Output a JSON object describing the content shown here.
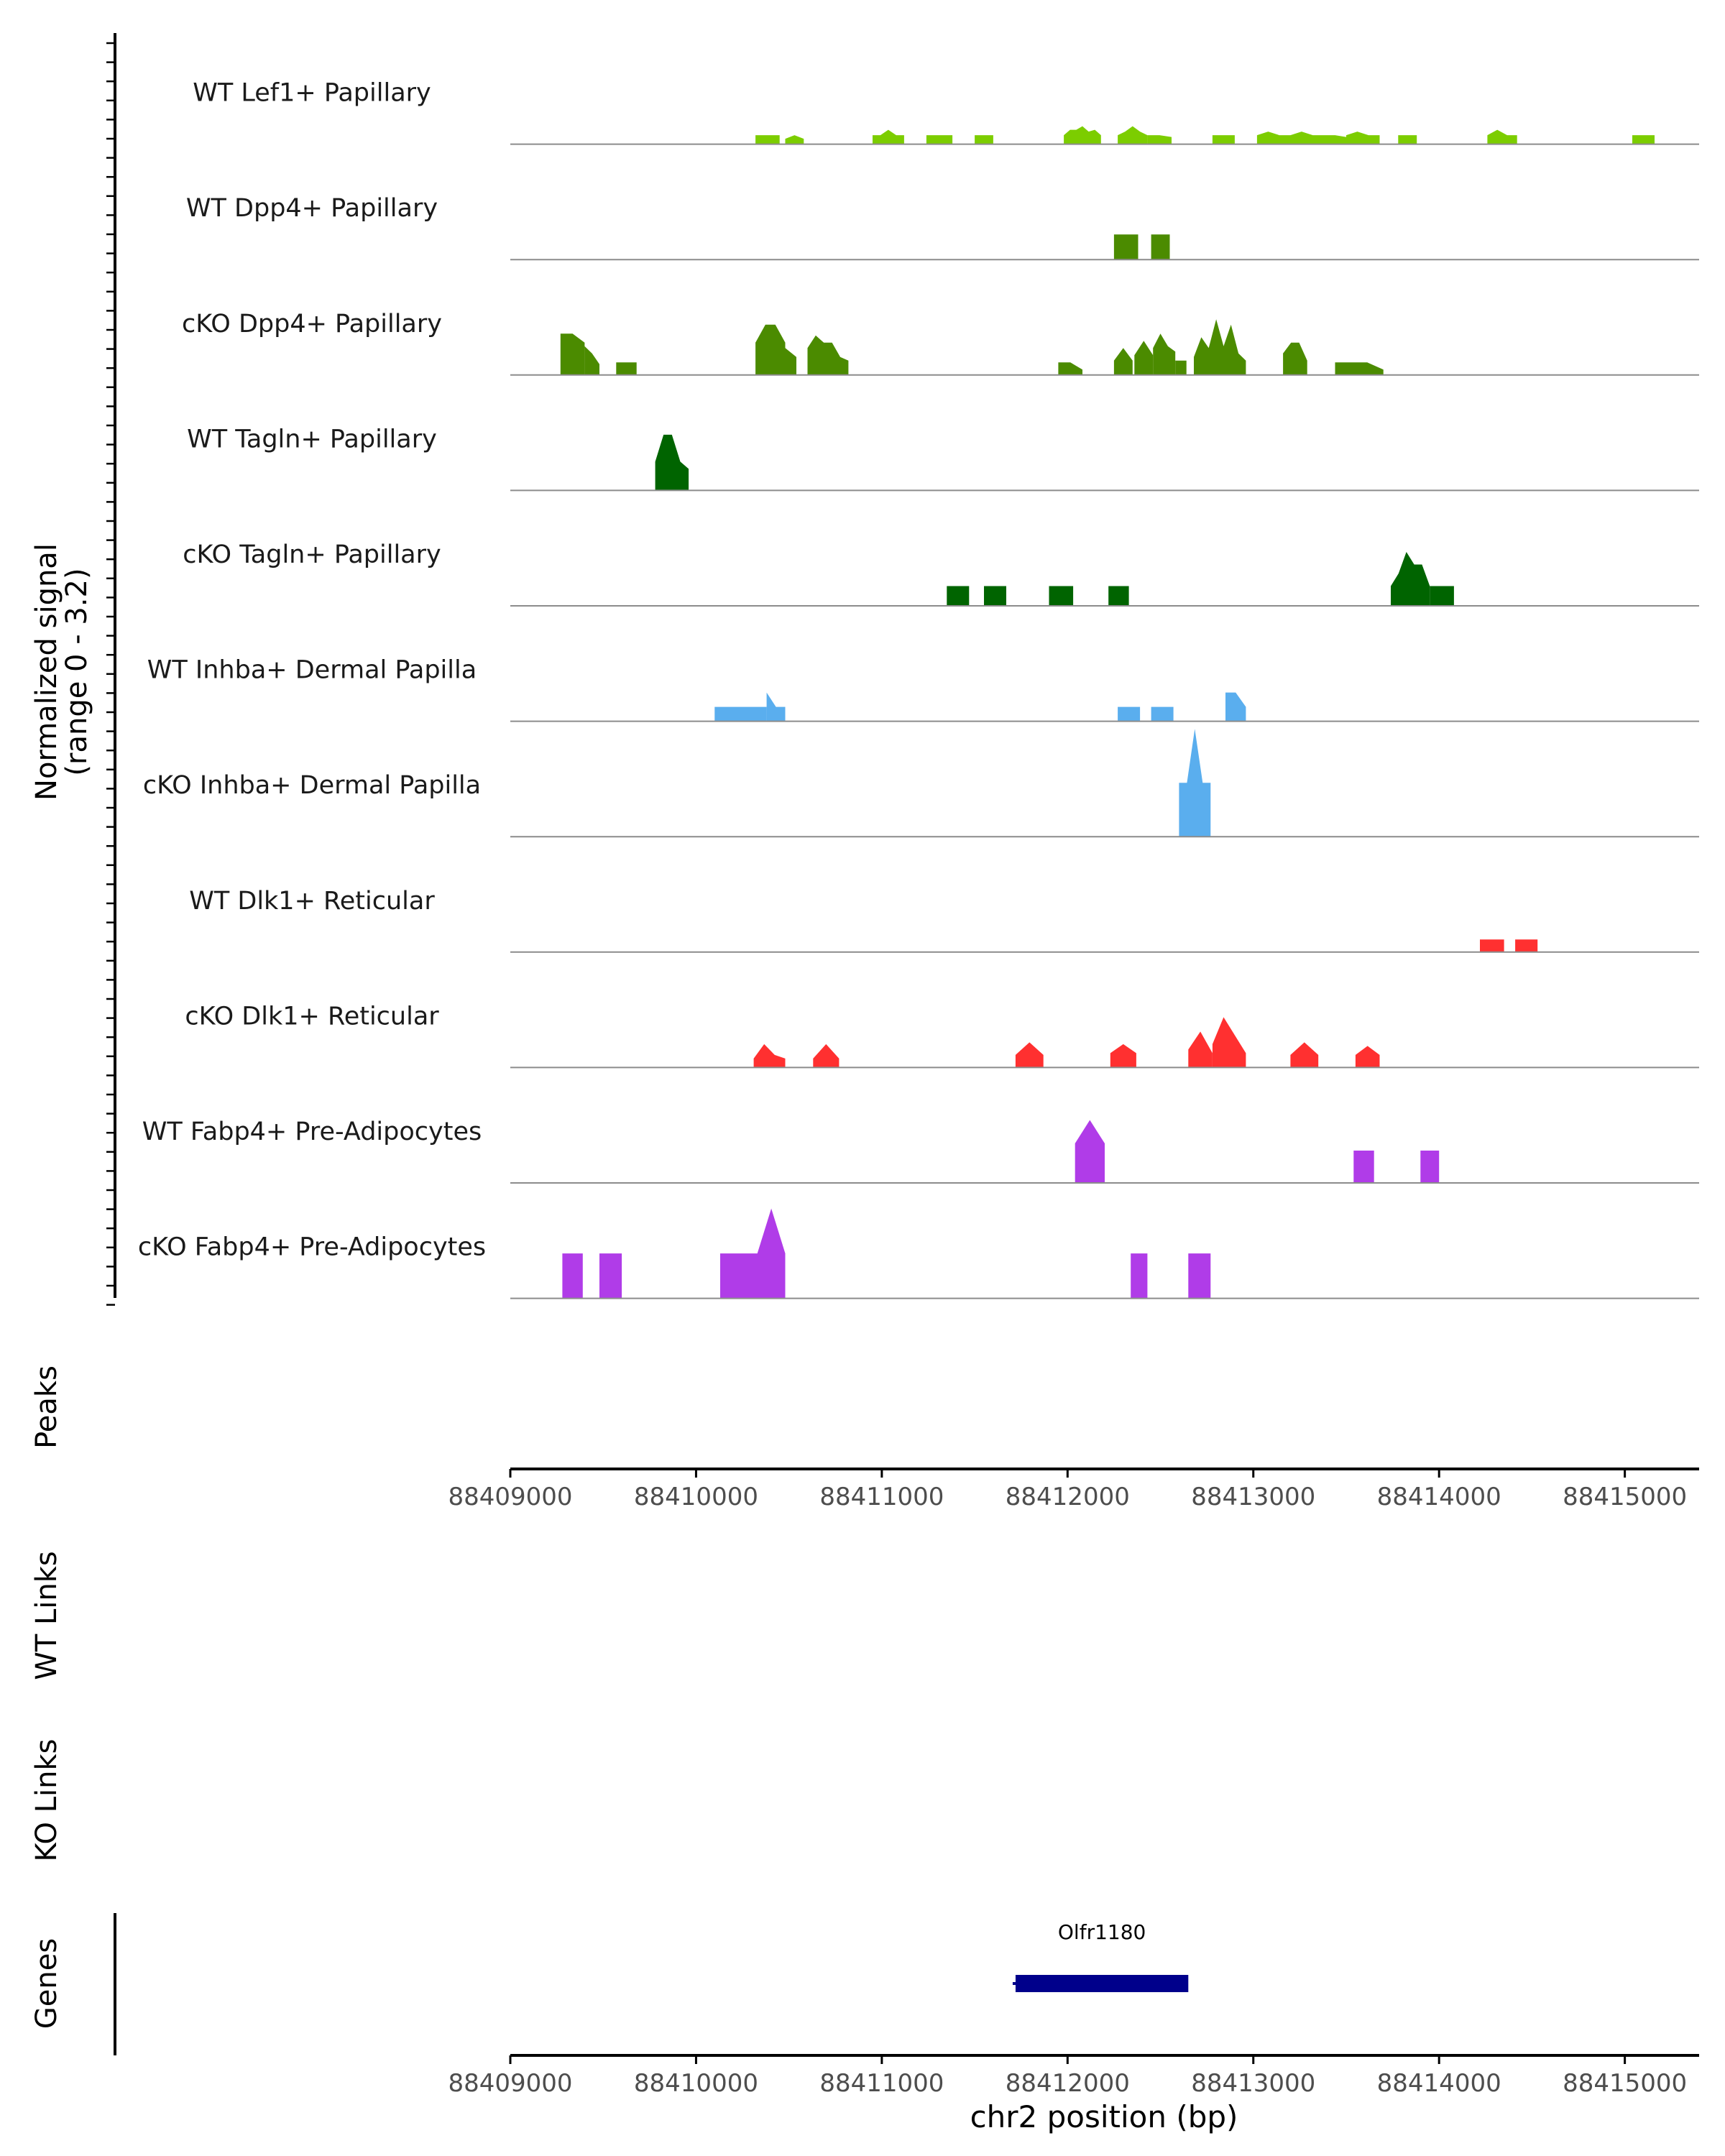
{
  "chart_data": {
    "type": "area",
    "title": "",
    "xlabel": "chr2 position (bp)",
    "ylabel": "Normalized signal",
    "ylabel_sub": "(range 0 - 3.2)",
    "y_range": [
      0,
      3.2
    ],
    "xlim": [
      88409000,
      88415400
    ],
    "x_ticks": [
      88409000,
      88410000,
      88411000,
      88412000,
      88413000,
      88414000,
      88415000
    ],
    "x_tick_labels": [
      "88409000",
      "88410000",
      "88411000",
      "88412000",
      "88413000",
      "88414000",
      "88415000"
    ],
    "peaks_label": "Peaks",
    "wt_links_label": "WT Links",
    "ko_links_label": "KO Links",
    "genes_label": "Genes",
    "genes": [
      {
        "name": "Olfr1180",
        "start": 88411720,
        "end": 88412650,
        "color": "#00008b"
      }
    ],
    "tracks": [
      {
        "name": "WT Lef1+ Papillary",
        "color": "#7ccd00",
        "regions": [
          {
            "start": 88410320,
            "end": 88410450,
            "values": [
              0.5,
              0.5
            ]
          },
          {
            "start": 88410480,
            "end": 88410580,
            "values": [
              0.3,
              0.5,
              0.3
            ]
          },
          {
            "start": 88410950,
            "end": 88411120,
            "values": [
              0.5,
              0.5,
              0.8,
              0.5,
              0.5
            ]
          },
          {
            "start": 88411240,
            "end": 88411380,
            "values": [
              0.5,
              0.5
            ]
          },
          {
            "start": 88411500,
            "end": 88411600,
            "values": [
              0.5,
              0.5
            ]
          },
          {
            "start": 88411980,
            "end": 88412180,
            "values": [
              0.5,
              0.8,
              0.8,
              1.0,
              0.7,
              0.8,
              0.5
            ]
          },
          {
            "start": 88412270,
            "end": 88412430,
            "values": [
              0.5,
              0.7,
              1.0,
              0.7,
              0.5
            ]
          },
          {
            "start": 88412430,
            "end": 88412560,
            "values": [
              0.5,
              0.5,
              0.4
            ]
          },
          {
            "start": 88412780,
            "end": 88412900,
            "values": [
              0.5,
              0.5
            ]
          },
          {
            "start": 88413020,
            "end": 88413500,
            "values": [
              0.5,
              0.7,
              0.5,
              0.5,
              0.7,
              0.5,
              0.5,
              0.5,
              0.4
            ]
          },
          {
            "start": 88413500,
            "end": 88413680,
            "values": [
              0.5,
              0.7,
              0.5,
              0.5
            ]
          },
          {
            "start": 88413780,
            "end": 88413880,
            "values": [
              0.5,
              0.5
            ]
          },
          {
            "start": 88414260,
            "end": 88414420,
            "values": [
              0.5,
              0.8,
              0.5,
              0.5
            ]
          },
          {
            "start": 88415040,
            "end": 88415160,
            "values": [
              0.5,
              0.5
            ]
          }
        ]
      },
      {
        "name": "WT Dpp4+ Papillary",
        "color": "#4b8b00",
        "regions": [
          {
            "start": 88412250,
            "end": 88412380,
            "values": [
              1.4,
              1.4
            ]
          },
          {
            "start": 88412450,
            "end": 88412550,
            "values": [
              1.4,
              1.4
            ]
          }
        ]
      },
      {
        "name": "cKO Dpp4+ Papillary",
        "color": "#4b8b00",
        "regions": [
          {
            "start": 88409270,
            "end": 88409400,
            "values": [
              2.3,
              2.3,
              1.8
            ]
          },
          {
            "start": 88409400,
            "end": 88409480,
            "values": [
              1.6,
              1.2,
              0.6
            ]
          },
          {
            "start": 88409570,
            "end": 88409680,
            "values": [
              0.7,
              0.7
            ]
          },
          {
            "start": 88410320,
            "end": 88410480,
            "values": [
              1.8,
              2.8,
              2.8,
              1.8
            ]
          },
          {
            "start": 88410480,
            "end": 88410540,
            "values": [
              1.5,
              1.0
            ]
          },
          {
            "start": 88410600,
            "end": 88410820,
            "values": [
              1.5,
              2.2,
              1.8,
              1.8,
              1.0,
              0.8
            ]
          },
          {
            "start": 88411950,
            "end": 88412080,
            "values": [
              0.7,
              0.7,
              0.3
            ]
          },
          {
            "start": 88412250,
            "end": 88412350,
            "values": [
              0.8,
              1.5,
              0.8
            ]
          },
          {
            "start": 88412360,
            "end": 88412460,
            "values": [
              1.1,
              1.9,
              1.1
            ]
          },
          {
            "start": 88412460,
            "end": 88412580,
            "values": [
              1.5,
              2.3,
              1.6,
              1.3
            ]
          },
          {
            "start": 88412580,
            "end": 88412640,
            "values": [
              0.8,
              0.8
            ]
          },
          {
            "start": 88412680,
            "end": 88412960,
            "values": [
              1.0,
              2.1,
              1.5,
              3.1,
              1.6,
              2.8,
              1.2,
              0.8
            ]
          },
          {
            "start": 88413160,
            "end": 88413290,
            "values": [
              1.2,
              1.8,
              1.8,
              0.8
            ]
          },
          {
            "start": 88413440,
            "end": 88413700,
            "values": [
              0.7,
              0.7,
              0.7,
              0.3
            ]
          }
        ]
      },
      {
        "name": "WT Tagln+ Papillary",
        "color": "#006400",
        "regions": [
          {
            "start": 88409780,
            "end": 88409960,
            "values": [
              1.6,
              3.1,
              3.1,
              1.6,
              1.2
            ]
          }
        ]
      },
      {
        "name": "cKO Tagln+ Papillary",
        "color": "#006400",
        "regions": [
          {
            "start": 88411350,
            "end": 88411470,
            "values": [
              1.1,
              1.1
            ]
          },
          {
            "start": 88411550,
            "end": 88411670,
            "values": [
              1.1,
              1.1
            ]
          },
          {
            "start": 88411900,
            "end": 88412030,
            "values": [
              1.1,
              1.1
            ]
          },
          {
            "start": 88412220,
            "end": 88412330,
            "values": [
              1.1,
              1.1
            ]
          },
          {
            "start": 88413740,
            "end": 88413950,
            "values": [
              1.1,
              1.8,
              3.0,
              2.3,
              2.3,
              1.1
            ]
          },
          {
            "start": 88413950,
            "end": 88414080,
            "values": [
              1.1,
              1.1
            ]
          }
        ]
      },
      {
        "name": "WT Inhba+ Dermal Papilla",
        "color": "#5aaeee",
        "regions": [
          {
            "start": 88410100,
            "end": 88410380,
            "values": [
              0.8,
              0.8,
              0.8,
              0.8
            ]
          },
          {
            "start": 88410380,
            "end": 88410480,
            "values": [
              1.6,
              0.8,
              0.8
            ]
          },
          {
            "start": 88412270,
            "end": 88412390,
            "values": [
              0.8,
              0.8
            ]
          },
          {
            "start": 88412450,
            "end": 88412570,
            "values": [
              0.8,
              0.8
            ]
          },
          {
            "start": 88412850,
            "end": 88412960,
            "values": [
              1.6,
              1.6,
              0.8
            ]
          }
        ]
      },
      {
        "name": "cKO Inhba+ Dermal Papilla",
        "color": "#5aaeee",
        "regions": [
          {
            "start": 88412600,
            "end": 88412770,
            "values": [
              3.0,
              3.0,
              6.0,
              3.0,
              3.0
            ]
          }
        ]
      },
      {
        "name": "WT Dlk1+ Reticular",
        "color": "#ff3030",
        "regions": [
          {
            "start": 88414220,
            "end": 88414350,
            "values": [
              0.7,
              0.7
            ]
          },
          {
            "start": 88414410,
            "end": 88414530,
            "values": [
              0.7,
              0.7
            ]
          }
        ]
      },
      {
        "name": "cKO Dlk1+ Reticular",
        "color": "#ff3030",
        "regions": [
          {
            "start": 88410310,
            "end": 88410480,
            "values": [
              0.5,
              1.3,
              0.7,
              0.5
            ]
          },
          {
            "start": 88410630,
            "end": 88410770,
            "values": [
              0.5,
              1.3,
              0.5
            ]
          },
          {
            "start": 88411720,
            "end": 88411870,
            "values": [
              0.7,
              1.4,
              0.7
            ]
          },
          {
            "start": 88412230,
            "end": 88412370,
            "values": [
              0.8,
              1.3,
              0.8
            ]
          },
          {
            "start": 88412650,
            "end": 88412780,
            "values": [
              1.0,
              2.0,
              0.8
            ]
          },
          {
            "start": 88412780,
            "end": 88412960,
            "values": [
              1.3,
              2.8,
              1.8,
              0.8
            ]
          },
          {
            "start": 88413200,
            "end": 88413350,
            "values": [
              0.7,
              1.4,
              0.7
            ]
          },
          {
            "start": 88413550,
            "end": 88413680,
            "values": [
              0.7,
              1.2,
              0.7
            ]
          }
        ]
      },
      {
        "name": "WT Fabp4+ Pre-Adipocytes",
        "color": "#b03ce8",
        "regions": [
          {
            "start": 88412040,
            "end": 88412200,
            "values": [
              2.2,
              3.5,
              2.2
            ]
          },
          {
            "start": 88413540,
            "end": 88413650,
            "values": [
              1.8,
              1.8
            ]
          },
          {
            "start": 88413900,
            "end": 88414000,
            "values": [
              1.8,
              1.8
            ]
          }
        ]
      },
      {
        "name": "cKO Fabp4+ Pre-Adipocytes",
        "color": "#b03ce8",
        "regions": [
          {
            "start": 88409280,
            "end": 88409390,
            "values": [
              2.5,
              2.5
            ]
          },
          {
            "start": 88409480,
            "end": 88409600,
            "values": [
              2.5,
              2.5
            ]
          },
          {
            "start": 88410130,
            "end": 88410340,
            "values": [
              2.5,
              2.5
            ]
          },
          {
            "start": 88410330,
            "end": 88410480,
            "values": [
              2.5,
              5.0,
              2.5
            ]
          },
          {
            "start": 88412340,
            "end": 88412430,
            "values": [
              2.5,
              2.5
            ]
          },
          {
            "start": 88412650,
            "end": 88412770,
            "values": [
              2.5,
              2.5
            ]
          }
        ]
      }
    ]
  }
}
